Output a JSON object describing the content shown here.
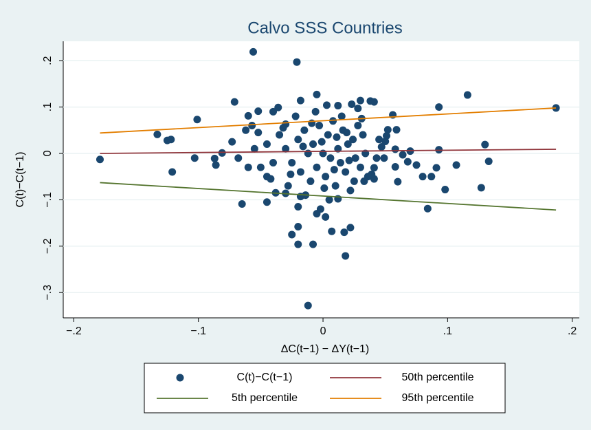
{
  "chart_data": {
    "type": "scatter",
    "title": "Calvo SSS Countries",
    "x_label": "ΔC(t−1) − ΔY(t−1)",
    "y_label": "C(t)−C(t−1)",
    "xlim": [
      -0.2085,
      0.2057
    ],
    "ylim": [
      -0.3546,
      0.2418
    ],
    "xticks": [
      {
        "value": -0.2,
        "label": "−.2"
      },
      {
        "value": -0.1,
        "label": "−.1"
      },
      0,
      {
        "value": 0.1,
        "label": ".1"
      },
      {
        "value": 0.2,
        "label": ".2"
      }
    ],
    "yticks": [
      {
        "value": -0.3,
        "label": "−.3"
      },
      {
        "value": -0.2,
        "label": "−.2"
      },
      {
        "value": -0.1,
        "label": "−.1"
      },
      0,
      {
        "value": 0.1,
        "label": ".1"
      },
      {
        "value": 0.2,
        "label": ".2"
      }
    ],
    "grid": true,
    "series": [
      {
        "name": "C(t)−C(t−1)",
        "type": "scatter",
        "color": "#1a476f",
        "x": [
          -0.056,
          -0.021,
          -0.179,
          -0.133,
          -0.125,
          -0.122,
          -0.121,
          -0.101,
          -0.103,
          -0.087,
          -0.086,
          -0.081,
          -0.071,
          -0.073,
          -0.065,
          -0.06,
          -0.057,
          -0.052,
          -0.04,
          -0.036,
          -0.03,
          -0.045,
          -0.038,
          -0.045,
          -0.03,
          -0.018,
          -0.02,
          -0.02,
          -0.025,
          -0.02,
          -0.008,
          0.018,
          -0.012,
          0.017,
          0.007,
          0.022,
          -0.005,
          -0.018,
          0.003,
          0.012,
          0.023,
          0.028,
          0.03,
          0.038,
          0.041,
          0.056,
          0.059,
          0.052,
          0.051,
          0.058,
          0.058,
          0.06,
          0.064,
          0.068,
          0.07,
          0.075,
          0.08,
          0.084,
          0.087,
          0.091,
          0.093,
          0.093,
          0.098,
          0.107,
          0.116,
          0.127,
          0.13,
          0.133,
          0.187,
          0.041,
          0.041,
          0.033,
          0.049,
          0.047,
          0.05,
          -0.005,
          0.002,
          -0.002,
          0.012,
          -0.03,
          -0.025,
          -0.02,
          -0.018,
          -0.015,
          -0.012,
          -0.01,
          -0.008,
          -0.005,
          -0.003,
          0,
          0.002,
          0.004,
          0.006,
          0.008,
          0.01,
          0.012,
          0.014,
          0.016,
          0.018,
          0.02,
          0.022,
          0.024,
          0.026,
          0.028,
          0.03,
          0.032,
          0.034,
          0.036,
          -0.035,
          -0.04,
          -0.045,
          -0.05,
          -0.055,
          -0.06,
          -0.062,
          -0.068,
          -0.028,
          -0.022,
          -0.014,
          -0.006,
          0.005,
          0.015,
          0.025,
          0.045,
          0.043,
          -0.016,
          -0.001,
          0.009,
          0.019,
          -0.026,
          -0.009,
          0.001,
          0.011,
          0.021,
          -0.032,
          -0.042,
          0.031,
          -0.052,
          0.039
        ],
        "values": [
          0.219,
          0.197,
          -0.013,
          0.041,
          0.028,
          0.03,
          -0.04,
          0.073,
          -0.01,
          -0.011,
          -0.025,
          0.001,
          0.111,
          0.025,
          -0.109,
          0.081,
          0.06,
          0.091,
          0.09,
          0.099,
          0.063,
          -0.105,
          -0.085,
          -0.05,
          -0.086,
          -0.093,
          -0.115,
          -0.158,
          -0.175,
          -0.196,
          -0.196,
          -0.221,
          -0.328,
          -0.17,
          -0.168,
          -0.16,
          0.127,
          0.114,
          0.104,
          0.103,
          0.106,
          0.097,
          0.114,
          0.113,
          0.111,
          0.083,
          0.051,
          0.051,
          0.038,
          0.009,
          -0.029,
          -0.061,
          -0.003,
          -0.018,
          0.005,
          -0.025,
          -0.05,
          -0.119,
          -0.05,
          -0.031,
          0.008,
          0.1,
          -0.078,
          -0.025,
          0.126,
          -0.074,
          0.019,
          -0.017,
          0.098,
          -0.031,
          -0.055,
          -0.06,
          -0.01,
          0.014,
          0.026,
          -0.13,
          -0.137,
          -0.12,
          -0.098,
          0.01,
          -0.02,
          0.03,
          -0.04,
          0.05,
          0,
          -0.06,
          0.02,
          -0.03,
          0.06,
          0,
          -0.05,
          0.04,
          -0.01,
          0.07,
          -0.07,
          0.01,
          -0.02,
          0.05,
          -0.04,
          0.02,
          -0.08,
          0.03,
          -0.01,
          0.06,
          -0.03,
          0.04,
          0,
          -0.05,
          0.04,
          -0.02,
          0.02,
          -0.03,
          0.01,
          -0.03,
          0.05,
          -0.01,
          -0.07,
          0.08,
          -0.09,
          0.09,
          -0.1,
          0.08,
          -0.06,
          0.03,
          -0.01,
          0.015,
          0.025,
          -0.035,
          0.045,
          -0.045,
          0.065,
          -0.075,
          0.035,
          -0.015,
          0.055,
          -0.055,
          0.075,
          0.045,
          -0.045
        ]
      },
      {
        "name": "50th percentile",
        "type": "line",
        "color": "#90353b",
        "x": [
          -0.179,
          0.187
        ],
        "values": [
          0,
          0.009
        ]
      },
      {
        "name": "5th percentile",
        "type": "line",
        "color": "#55752f",
        "x": [
          -0.179,
          0.187
        ],
        "values": [
          -0.063,
          -0.122
        ]
      },
      {
        "name": "95th percentile",
        "type": "line",
        "color": "#e37e00",
        "x": [
          -0.179,
          0.187
        ],
        "values": [
          0.044,
          0.098
        ]
      }
    ]
  }
}
